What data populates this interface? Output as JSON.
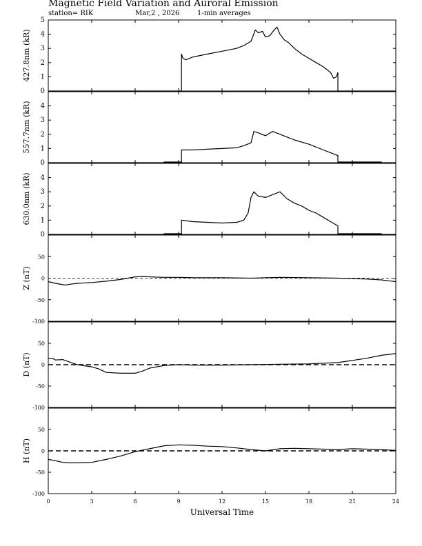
{
  "header": {
    "title": "Magnetic Field Variation and Auroral Emission",
    "station": "station= RIK",
    "date": "Mar,2  , 2026",
    "averaging": "1-min averages"
  },
  "chart_data": [
    {
      "type": "line",
      "ylabel": "427.8nm (kR)",
      "ylim": [
        0,
        5
      ],
      "yticks": [
        0,
        1,
        2,
        3,
        4,
        5
      ],
      "baseline_dashed": false,
      "series": [
        {
          "x": [
            0,
            9.2,
            9.2,
            9.3,
            9.5,
            10,
            11,
            12,
            13,
            13.5,
            14,
            14.3,
            14.5,
            14.8,
            15,
            15.3,
            15.6,
            15.8,
            16,
            16.3,
            16.6,
            17,
            17.5,
            18,
            18.5,
            19,
            19.5,
            19.7,
            19.9,
            20,
            20,
            24
          ],
          "y": [
            0,
            0,
            2.6,
            2.3,
            2.2,
            2.4,
            2.6,
            2.8,
            3.0,
            3.2,
            3.5,
            4.3,
            4.1,
            4.2,
            3.8,
            3.9,
            4.3,
            4.5,
            4.0,
            3.6,
            3.4,
            3.0,
            2.6,
            2.3,
            2.0,
            1.7,
            1.3,
            0.9,
            1.0,
            1.3,
            0,
            0
          ]
        }
      ]
    },
    {
      "type": "line",
      "ylabel": "557.7nm (kR)",
      "ylim": [
        0,
        5
      ],
      "yticks": [
        0,
        1,
        2,
        3,
        4
      ],
      "baseline_dashed": false,
      "series": [
        {
          "x": [
            0,
            8,
            8,
            9.2,
            9.2,
            10,
            11,
            12,
            13,
            13.5,
            14,
            14.2,
            14.5,
            15,
            15.5,
            16,
            16.5,
            17,
            18,
            19,
            19.5,
            20,
            20,
            23,
            23,
            24
          ],
          "y": [
            0,
            0,
            0.05,
            0.05,
            0.9,
            0.9,
            0.95,
            1.0,
            1.05,
            1.2,
            1.4,
            2.2,
            2.1,
            1.9,
            2.2,
            2.0,
            1.8,
            1.6,
            1.3,
            0.9,
            0.7,
            0.5,
            0.05,
            0.05,
            0,
            0
          ]
        }
      ]
    },
    {
      "type": "line",
      "ylabel": "630.0nm (kR)",
      "ylim": [
        0,
        5
      ],
      "yticks": [
        0,
        1,
        2,
        3,
        4
      ],
      "baseline_dashed": false,
      "series": [
        {
          "x": [
            0,
            8,
            8,
            9.2,
            9.2,
            10,
            11,
            12,
            13,
            13.5,
            13.8,
            14,
            14.2,
            14.5,
            15,
            15.5,
            16,
            16.5,
            17,
            17.5,
            18,
            18.5,
            19,
            19.5,
            20,
            20,
            23,
            23,
            24
          ],
          "y": [
            0,
            0,
            0.05,
            0.05,
            1.0,
            0.9,
            0.85,
            0.8,
            0.85,
            1.0,
            1.5,
            2.6,
            3.0,
            2.7,
            2.6,
            2.8,
            3.0,
            2.5,
            2.2,
            2.0,
            1.7,
            1.5,
            1.2,
            0.9,
            0.6,
            0.05,
            0.05,
            0,
            0
          ]
        }
      ]
    },
    {
      "type": "line",
      "ylabel": "Z (nT)",
      "ylim": [
        -100,
        100
      ],
      "yticks": [
        -100,
        -50,
        0,
        50
      ],
      "baseline_dashed": true,
      "series": [
        {
          "x": [
            0,
            0.5,
            1,
            1.2,
            1.5,
            2,
            3,
            4,
            5,
            6,
            6.5,
            7,
            8,
            9,
            10,
            12,
            14,
            16,
            18,
            20,
            21,
            22,
            23,
            23.5,
            24
          ],
          "y": [
            -8,
            -12,
            -15,
            -16,
            -14,
            -12,
            -10,
            -7,
            -3,
            3,
            4,
            3,
            2,
            2,
            1,
            1,
            0,
            2,
            1,
            0,
            -1,
            -2,
            -4,
            -6,
            -8
          ]
        }
      ]
    },
    {
      "type": "line",
      "ylabel": "D (nT)",
      "ylim": [
        -100,
        100
      ],
      "yticks": [
        -100,
        -50,
        0,
        50
      ],
      "baseline_dashed": true,
      "series": [
        {
          "x": [
            0,
            0.3,
            0.5,
            1,
            1.5,
            2,
            3,
            3.5,
            4,
            5,
            6,
            6.5,
            7,
            8,
            9,
            10,
            12,
            14,
            16,
            18,
            20,
            21,
            22,
            23,
            24
          ],
          "y": [
            14,
            15,
            11,
            12,
            6,
            0,
            -5,
            -10,
            -18,
            -20,
            -20,
            -15,
            -8,
            -2,
            0,
            -1,
            -1,
            0,
            1,
            2,
            5,
            10,
            15,
            22,
            26
          ]
        }
      ]
    },
    {
      "type": "line",
      "ylabel": "H (nT)",
      "ylim": [
        -100,
        100
      ],
      "yticks": [
        -100,
        -50,
        0,
        50
      ],
      "baseline_dashed": true,
      "series": [
        {
          "x": [
            0,
            0.5,
            1,
            1.5,
            2,
            3,
            4,
            5,
            6,
            7,
            8,
            9,
            10,
            11,
            12,
            13,
            14,
            15,
            16,
            17,
            18,
            19,
            20,
            21,
            22,
            23,
            24
          ],
          "y": [
            -20,
            -23,
            -27,
            -28,
            -28,
            -27,
            -20,
            -12,
            -2,
            5,
            12,
            14,
            13,
            11,
            10,
            7,
            3,
            0,
            5,
            6,
            5,
            4,
            3,
            5,
            4,
            3,
            1
          ]
        }
      ]
    }
  ],
  "xaxis": {
    "label": "Universal Time",
    "xlim": [
      0,
      24
    ],
    "ticks": [
      0,
      3,
      6,
      9,
      12,
      15,
      18,
      21,
      24
    ]
  }
}
